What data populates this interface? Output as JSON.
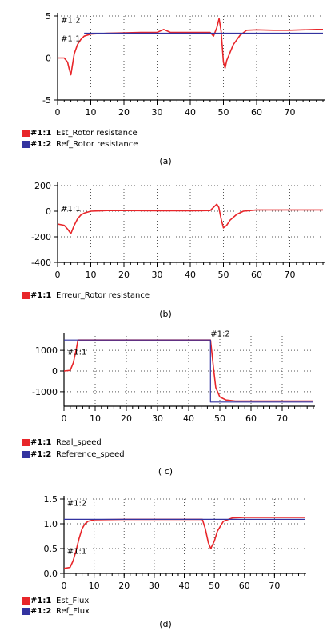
{
  "chart_data": [
    {
      "type": "line",
      "caption": "(a)",
      "xlim": [
        0,
        80
      ],
      "ylim": [
        -5,
        5
      ],
      "xticks": [
        0,
        10,
        20,
        30,
        40,
        50,
        60,
        70
      ],
      "yticks": [
        -5,
        0,
        5
      ],
      "grid": true,
      "legend_position": "bottom-left",
      "markers": [
        {
          "text": "#1:2",
          "x": 1,
          "y": 4.5
        },
        {
          "text": "#1:1",
          "x": 1,
          "y": 2.3
        }
      ],
      "series": [
        {
          "name": "Est_Rotor resistance",
          "legend_prefix": "#1:1",
          "color": "#e8262a",
          "points": [
            [
              0,
              0
            ],
            [
              2,
              0
            ],
            [
              3,
              -0.5
            ],
            [
              3.5,
              -1.3
            ],
            [
              4,
              -2.0
            ],
            [
              5,
              0.5
            ],
            [
              6,
              1.6
            ],
            [
              7,
              2.2
            ],
            [
              8,
              2.6
            ],
            [
              10,
              2.85
            ],
            [
              15,
              2.95
            ],
            [
              20,
              3.0
            ],
            [
              25,
              3.05
            ],
            [
              30,
              3.05
            ],
            [
              32,
              3.4
            ],
            [
              34,
              3.05
            ],
            [
              40,
              3.05
            ],
            [
              46,
              3.05
            ],
            [
              47,
              2.6
            ],
            [
              48,
              3.6
            ],
            [
              48.7,
              4.7
            ],
            [
              49.3,
              3.2
            ],
            [
              50,
              -0.5
            ],
            [
              50.5,
              -1.2
            ],
            [
              51,
              -0.3
            ],
            [
              53,
              1.6
            ],
            [
              55,
              2.7
            ],
            [
              57,
              3.3
            ],
            [
              60,
              3.35
            ],
            [
              65,
              3.3
            ],
            [
              70,
              3.3
            ],
            [
              78,
              3.4
            ],
            [
              80,
              3.4
            ]
          ]
        },
        {
          "name": "Ref_Rotor resistance",
          "legend_prefix": "#1:2",
          "color": "#3333a0",
          "points": [
            [
              8,
              2.95
            ],
            [
              80,
              2.95
            ]
          ]
        }
      ]
    },
    {
      "type": "line",
      "caption": "(b)",
      "xlim": [
        0,
        80
      ],
      "ylim": [
        -400,
        200
      ],
      "xticks": [
        0,
        10,
        20,
        30,
        40,
        50,
        60,
        70
      ],
      "yticks": [
        -400,
        -200,
        0,
        200
      ],
      "grid": true,
      "legend_position": "bottom-left",
      "markers": [
        {
          "text": "#1:1",
          "x": 1,
          "y": 20
        }
      ],
      "series": [
        {
          "name": "Erreur_Rotor resistance",
          "legend_prefix": "#1:1",
          "color": "#e8262a",
          "points": [
            [
              0,
              -100
            ],
            [
              2,
              -110
            ],
            [
              3,
              -140
            ],
            [
              4,
              -175
            ],
            [
              5,
              -110
            ],
            [
              6,
              -60
            ],
            [
              7,
              -30
            ],
            [
              8,
              -15
            ],
            [
              10,
              0
            ],
            [
              15,
              5
            ],
            [
              20,
              5
            ],
            [
              30,
              3
            ],
            [
              40,
              3
            ],
            [
              46,
              5
            ],
            [
              47,
              30
            ],
            [
              48,
              55
            ],
            [
              48.6,
              30
            ],
            [
              49.3,
              -60
            ],
            [
              50,
              -130
            ],
            [
              51,
              -110
            ],
            [
              52,
              -70
            ],
            [
              54,
              -25
            ],
            [
              56,
              0
            ],
            [
              60,
              10
            ],
            [
              70,
              10
            ],
            [
              80,
              10
            ]
          ]
        }
      ]
    },
    {
      "type": "line",
      "caption": "( c)",
      "xlim": [
        0,
        80
      ],
      "ylim": [
        -1700,
        1700
      ],
      "xticks": [
        0,
        10,
        20,
        30,
        40,
        50,
        60,
        70
      ],
      "yticks": [
        -1000,
        0,
        1000
      ],
      "grid": true,
      "legend_position": "bottom-left",
      "markers": [
        {
          "text": "#1:1",
          "x": 1,
          "y": 900
        },
        {
          "text": "#1:2",
          "x": 47,
          "y": 1800
        }
      ],
      "series": [
        {
          "name": "Real_speed",
          "legend_prefix": "#1:1",
          "color": "#e8262a",
          "points": [
            [
              0,
              0
            ],
            [
              2,
              30
            ],
            [
              3,
              400
            ],
            [
              4,
              1100
            ],
            [
              4.5,
              1500
            ],
            [
              5,
              1500
            ],
            [
              30,
              1500
            ],
            [
              47,
              1500
            ],
            [
              47.5,
              800
            ],
            [
              48,
              100
            ],
            [
              48.7,
              -800
            ],
            [
              50,
              -1250
            ],
            [
              52,
              -1400
            ],
            [
              55,
              -1450
            ],
            [
              80,
              -1450
            ]
          ]
        },
        {
          "name": "Reference_speed",
          "legend_prefix": "#1:2",
          "color": "#3333a0",
          "points": [
            [
              0,
              1500
            ],
            [
              47,
              1500
            ],
            [
              47,
              -1500
            ],
            [
              80,
              -1500
            ]
          ]
        }
      ]
    },
    {
      "type": "line",
      "caption": "(d)",
      "xlim": [
        0,
        80
      ],
      "ylim": [
        0,
        1.5
      ],
      "xticks": [
        0,
        10,
        20,
        30,
        40,
        50,
        60,
        70
      ],
      "yticks": [
        0.0,
        0.5,
        1.0,
        1.5
      ],
      "ytick_labels": [
        "0.0",
        "0.5",
        "1.0",
        "1.5"
      ],
      "grid": true,
      "legend_position": "bottom-left",
      "markers": [
        {
          "text": "#1:2",
          "x": 1,
          "y": 1.41
        },
        {
          "text": "#1:1",
          "x": 1,
          "y": 0.44
        }
      ],
      "series": [
        {
          "name": "Est_Flux",
          "legend_prefix": "#1:1",
          "color": "#e8262a",
          "points": [
            [
              0,
              0.1
            ],
            [
              2,
              0.12
            ],
            [
              3,
              0.25
            ],
            [
              4,
              0.45
            ],
            [
              5,
              0.7
            ],
            [
              6,
              0.9
            ],
            [
              7,
              1.0
            ],
            [
              8,
              1.05
            ],
            [
              10,
              1.08
            ],
            [
              20,
              1.09
            ],
            [
              30,
              1.09
            ],
            [
              40,
              1.09
            ],
            [
              46,
              1.09
            ],
            [
              47,
              0.9
            ],
            [
              48,
              0.62
            ],
            [
              48.8,
              0.5
            ],
            [
              50,
              0.65
            ],
            [
              51,
              0.85
            ],
            [
              53,
              1.05
            ],
            [
              56,
              1.12
            ],
            [
              60,
              1.13
            ],
            [
              80,
              1.13
            ]
          ]
        },
        {
          "name": "Ref_Flux",
          "legend_prefix": "#1:2",
          "color": "#3333a0",
          "points": [
            [
              0,
              1.09
            ],
            [
              80,
              1.09
            ]
          ]
        }
      ]
    }
  ]
}
